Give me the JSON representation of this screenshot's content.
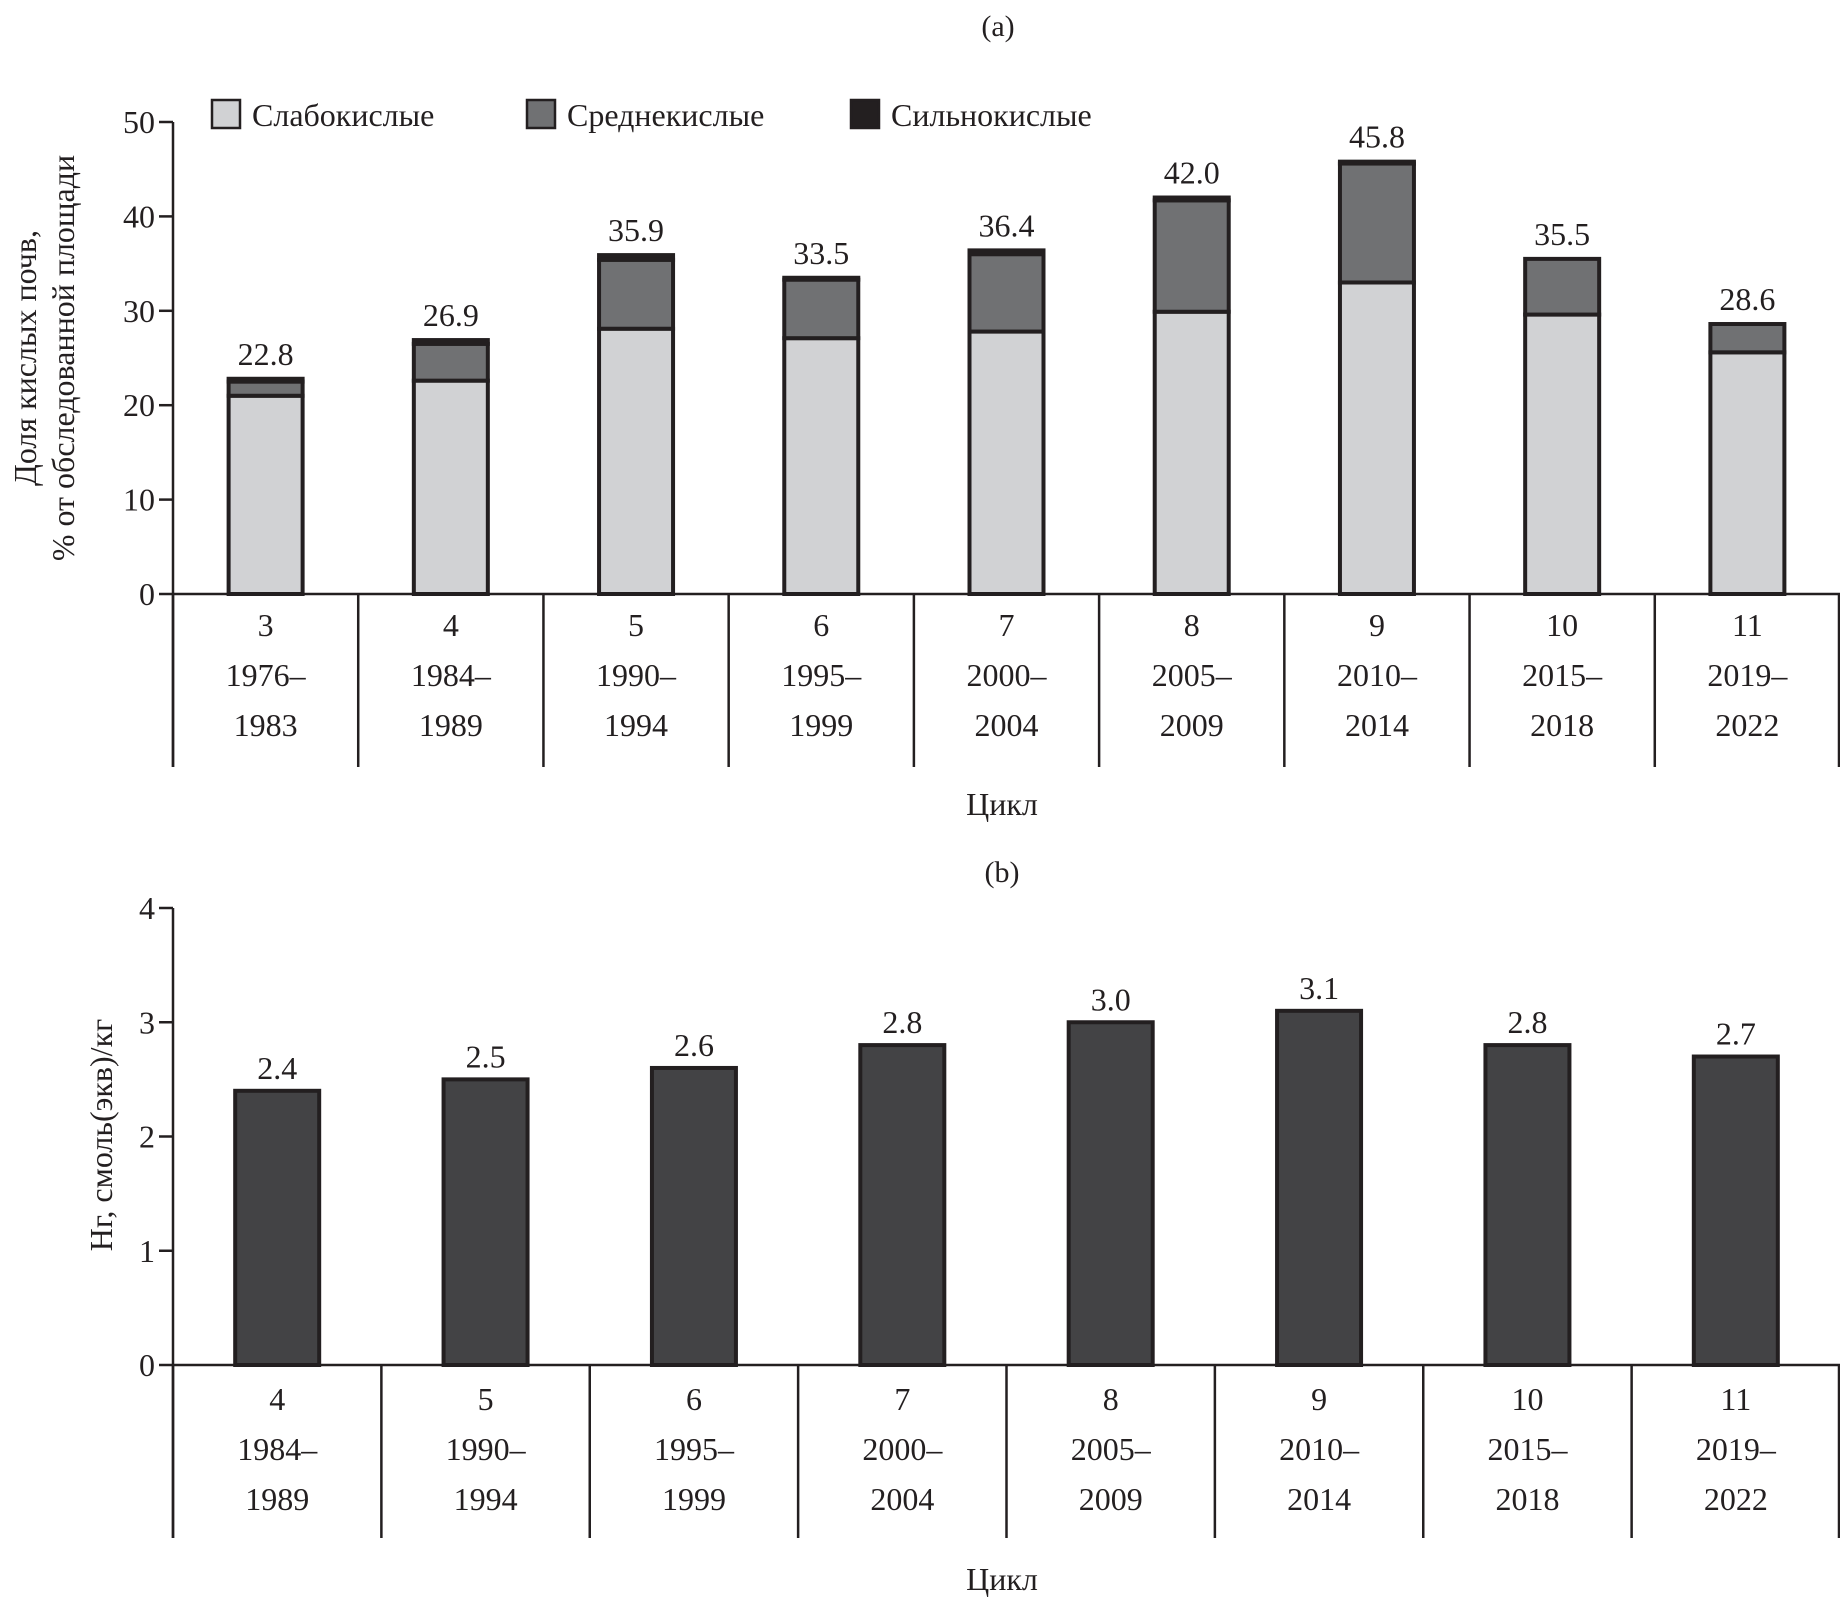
{
  "chart_data": [
    {
      "id": "a",
      "type": "bar",
      "stacked": true,
      "panel_label": "(a)",
      "title": "",
      "ylabel_lines": [
        "Доля кислых почв,",
        "% от обследованной площади"
      ],
      "xlabel": "Цикл",
      "ylim": [
        0,
        50
      ],
      "yticks": [
        0,
        10,
        20,
        30,
        40,
        50
      ],
      "grid": false,
      "legend_position": "top-left",
      "categories": [
        {
          "cycle": "3",
          "start": "1976–",
          "end": "1983"
        },
        {
          "cycle": "4",
          "start": "1984–",
          "end": "1989"
        },
        {
          "cycle": "5",
          "start": "1990–",
          "end": "1994"
        },
        {
          "cycle": "6",
          "start": "1995–",
          "end": "1999"
        },
        {
          "cycle": "7",
          "start": "2000–",
          "end": "2004"
        },
        {
          "cycle": "8",
          "start": "2005–",
          "end": "2009"
        },
        {
          "cycle": "9",
          "start": "2010–",
          "end": "2014"
        },
        {
          "cycle": "10",
          "start": "2015–",
          "end": "2018"
        },
        {
          "cycle": "11",
          "start": "2019–",
          "end": "2022"
        }
      ],
      "series": [
        {
          "name": "Слабокислые",
          "color": "#d1d2d4",
          "values": [
            21.0,
            22.6,
            28.1,
            27.1,
            27.8,
            29.9,
            33.0,
            29.6,
            25.6
          ]
        },
        {
          "name": "Среднекислые",
          "color": "#707173",
          "values": [
            1.5,
            3.9,
            7.3,
            6.2,
            8.2,
            11.8,
            12.6,
            5.9,
            3.0
          ]
        },
        {
          "name": "Сильнокислые",
          "color": "#231f20",
          "values": [
            0.3,
            0.4,
            0.5,
            0.2,
            0.4,
            0.3,
            0.2,
            0.0,
            0.0
          ]
        }
      ],
      "totals": [
        22.8,
        26.9,
        35.9,
        33.5,
        36.4,
        42.0,
        45.8,
        35.5,
        28.6
      ],
      "total_labels": [
        "22.8",
        "26.9",
        "35.9",
        "33.5",
        "36.4",
        "42.0",
        "45.8",
        "35.5",
        "28.6"
      ]
    },
    {
      "id": "b",
      "type": "bar",
      "stacked": false,
      "panel_label": "(b)",
      "title": "",
      "ylabel_lines": [
        "Нг, смоль(экв)/кг"
      ],
      "xlabel": "Цикл",
      "ylim": [
        0,
        4
      ],
      "yticks": [
        0,
        1,
        2,
        3,
        4
      ],
      "grid": false,
      "categories": [
        {
          "cycle": "4",
          "start": "1984–",
          "end": "1989"
        },
        {
          "cycle": "5",
          "start": "1990–",
          "end": "1994"
        },
        {
          "cycle": "6",
          "start": "1995–",
          "end": "1999"
        },
        {
          "cycle": "7",
          "start": "2000–",
          "end": "2004"
        },
        {
          "cycle": "8",
          "start": "2005–",
          "end": "2009"
        },
        {
          "cycle": "9",
          "start": "2010–",
          "end": "2014"
        },
        {
          "cycle": "10",
          "start": "2015–",
          "end": "2018"
        },
        {
          "cycle": "11",
          "start": "2019–",
          "end": "2022"
        }
      ],
      "series": [
        {
          "name": "Нг",
          "color": "#434345",
          "values": [
            2.4,
            2.5,
            2.6,
            2.8,
            3.0,
            3.1,
            2.8,
            2.7
          ]
        }
      ],
      "value_labels": [
        "2.4",
        "2.5",
        "2.6",
        "2.8",
        "3.0",
        "3.1",
        "2.8",
        "2.7"
      ]
    }
  ]
}
